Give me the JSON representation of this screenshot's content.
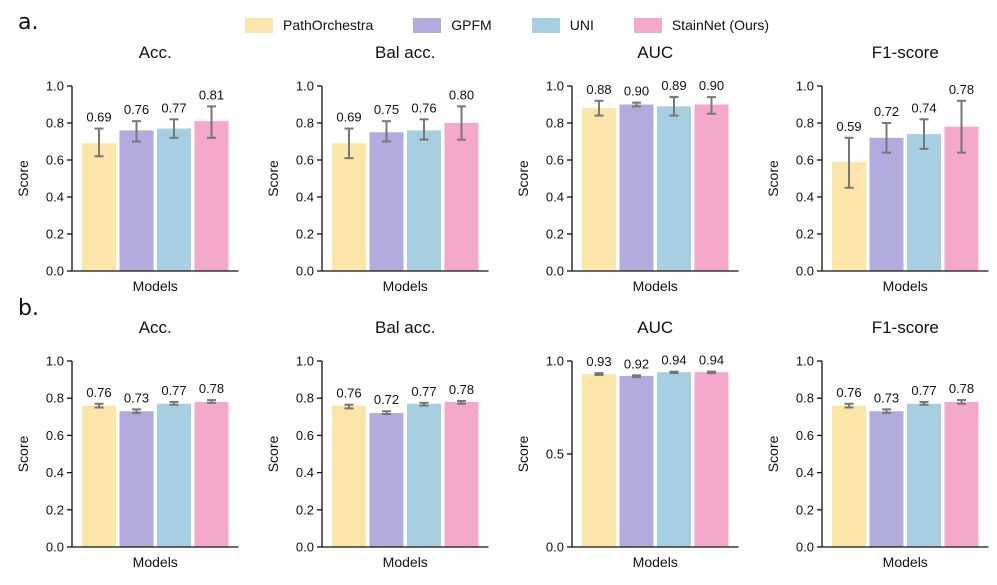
{
  "panel_labels": [
    "a.",
    "b."
  ],
  "legend": [
    {
      "label": "PathOrchestra",
      "color": "#fce5a8"
    },
    {
      "label": "GPFM",
      "color": "#b1acdd"
    },
    {
      "label": "UNI",
      "color": "#a6d0e1"
    },
    {
      "label": "StainNet (Ours)",
      "color": "#f4a8cb"
    }
  ],
  "chart_data": [
    {
      "type": "bar",
      "title": "Acc.",
      "xlabel": "Models",
      "ylabel": "Score",
      "ylim": [
        0,
        1
      ],
      "yticks": [
        "0.0",
        "0.2",
        "0.4",
        "0.6",
        "0.8",
        "1.0"
      ],
      "ytick_values": [
        0,
        0.2,
        0.4,
        0.6,
        0.8,
        1.0
      ],
      "categories": [
        "PathOrchestra",
        "GPFM",
        "UNI",
        "StainNet (Ours)"
      ],
      "values": [
        0.69,
        0.76,
        0.77,
        0.81
      ],
      "value_labels": [
        "0.69",
        "0.76",
        "0.77",
        "0.81"
      ],
      "error": [
        [
          0.62,
          0.77
        ],
        [
          0.7,
          0.81
        ],
        [
          0.72,
          0.82
        ],
        [
          0.72,
          0.89
        ]
      ]
    },
    {
      "type": "bar",
      "title": "Bal acc.",
      "xlabel": "Models",
      "ylabel": "Score",
      "ylim": [
        0,
        1
      ],
      "yticks": [
        "0.0",
        "0.2",
        "0.4",
        "0.6",
        "0.8",
        "1.0"
      ],
      "ytick_values": [
        0,
        0.2,
        0.4,
        0.6,
        0.8,
        1.0
      ],
      "categories": [
        "PathOrchestra",
        "GPFM",
        "UNI",
        "StainNet (Ours)"
      ],
      "values": [
        0.69,
        0.75,
        0.76,
        0.8
      ],
      "value_labels": [
        "0.69",
        "0.75",
        "0.76",
        "0.80"
      ],
      "error": [
        [
          0.61,
          0.77
        ],
        [
          0.7,
          0.81
        ],
        [
          0.71,
          0.82
        ],
        [
          0.71,
          0.89
        ]
      ]
    },
    {
      "type": "bar",
      "title": "AUC",
      "xlabel": "Models",
      "ylabel": "Score",
      "ylim": [
        0,
        1
      ],
      "yticks": [
        "0.0",
        "0.2",
        "0.4",
        "0.6",
        "0.8",
        "1.0"
      ],
      "ytick_values": [
        0,
        0.2,
        0.4,
        0.6,
        0.8,
        1.0
      ],
      "categories": [
        "PathOrchestra",
        "GPFM",
        "UNI",
        "StainNet (Ours)"
      ],
      "values": [
        0.88,
        0.9,
        0.89,
        0.9
      ],
      "value_labels": [
        "0.88",
        "0.90",
        "0.89",
        "0.90"
      ],
      "error": [
        [
          0.84,
          0.92
        ],
        [
          0.89,
          0.91
        ],
        [
          0.84,
          0.94
        ],
        [
          0.85,
          0.94
        ]
      ]
    },
    {
      "type": "bar",
      "title": "F1-score",
      "xlabel": "Models",
      "ylabel": "Score",
      "ylim": [
        0,
        1
      ],
      "yticks": [
        "0.0",
        "0.2",
        "0.4",
        "0.6",
        "0.8",
        "1.0"
      ],
      "ytick_values": [
        0,
        0.2,
        0.4,
        0.6,
        0.8,
        1.0
      ],
      "categories": [
        "PathOrchestra",
        "GPFM",
        "UNI",
        "StainNet (Ours)"
      ],
      "values": [
        0.59,
        0.72,
        0.74,
        0.78
      ],
      "value_labels": [
        "0.59",
        "0.72",
        "0.74",
        "0.78"
      ],
      "error": [
        [
          0.45,
          0.72
        ],
        [
          0.64,
          0.8
        ],
        [
          0.66,
          0.82
        ],
        [
          0.64,
          0.92
        ]
      ]
    },
    {
      "type": "bar",
      "title": "Acc.",
      "xlabel": "Models",
      "ylabel": "Score",
      "ylim": [
        0,
        1
      ],
      "yticks": [
        "0.0",
        "0.2",
        "0.4",
        "0.6",
        "0.8",
        "1.0"
      ],
      "ytick_values": [
        0,
        0.2,
        0.4,
        0.6,
        0.8,
        1.0
      ],
      "categories": [
        "PathOrchestra",
        "GPFM",
        "UNI",
        "StainNet (Ours)"
      ],
      "values": [
        0.76,
        0.73,
        0.77,
        0.78
      ],
      "value_labels": [
        "0.76",
        "0.73",
        "0.77",
        "0.78"
      ],
      "error": [
        [
          0.75,
          0.77
        ],
        [
          0.72,
          0.74
        ],
        [
          0.765,
          0.78
        ],
        [
          0.775,
          0.79
        ]
      ]
    },
    {
      "type": "bar",
      "title": "Bal acc.",
      "xlabel": "Models",
      "ylabel": "Score",
      "ylim": [
        0,
        1
      ],
      "yticks": [
        "0.0",
        "0.2",
        "0.4",
        "0.6",
        "0.8",
        "1.0"
      ],
      "ytick_values": [
        0,
        0.2,
        0.4,
        0.6,
        0.8,
        1.0
      ],
      "categories": [
        "PathOrchestra",
        "GPFM",
        "UNI",
        "StainNet (Ours)"
      ],
      "values": [
        0.76,
        0.72,
        0.77,
        0.78
      ],
      "value_labels": [
        "0.76",
        "0.72",
        "0.77",
        "0.78"
      ],
      "error": [
        [
          0.745,
          0.765
        ],
        [
          0.715,
          0.73
        ],
        [
          0.76,
          0.775
        ],
        [
          0.77,
          0.785
        ]
      ]
    },
    {
      "type": "bar",
      "title": "AUC",
      "xlabel": "Models",
      "ylabel": "Score",
      "ylim": [
        0,
        1
      ],
      "yticks": [
        "0.0",
        "0.5",
        "1.0"
      ],
      "ytick_values": [
        0,
        0.5,
        1.0
      ],
      "categories": [
        "PathOrchestra",
        "GPFM",
        "UNI",
        "StainNet (Ours)"
      ],
      "values": [
        0.93,
        0.92,
        0.94,
        0.94
      ],
      "value_labels": [
        "0.93",
        "0.92",
        "0.94",
        "0.94"
      ],
      "error": [
        [
          0.925,
          0.935
        ],
        [
          0.913,
          0.923
        ],
        [
          0.935,
          0.943
        ],
        [
          0.935,
          0.943
        ]
      ]
    },
    {
      "type": "bar",
      "title": "F1-score",
      "xlabel": "Models",
      "ylabel": "Score",
      "ylim": [
        0,
        1
      ],
      "yticks": [
        "0.0",
        "0.2",
        "0.4",
        "0.6",
        "0.8",
        "1.0"
      ],
      "ytick_values": [
        0,
        0.2,
        0.4,
        0.6,
        0.8,
        1.0
      ],
      "categories": [
        "PathOrchestra",
        "GPFM",
        "UNI",
        "StainNet (Ours)"
      ],
      "values": [
        0.76,
        0.73,
        0.77,
        0.78
      ],
      "value_labels": [
        "0.76",
        "0.73",
        "0.77",
        "0.78"
      ],
      "error": [
        [
          0.75,
          0.77
        ],
        [
          0.72,
          0.74
        ],
        [
          0.765,
          0.78
        ],
        [
          0.77,
          0.79
        ]
      ]
    }
  ]
}
